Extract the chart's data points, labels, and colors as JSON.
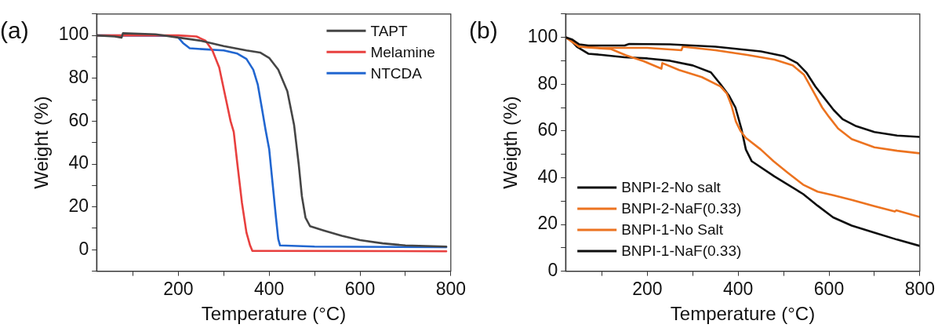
{
  "chart_data": [
    {
      "type": "line",
      "title": "(a)",
      "xlabel": "Temperature (°C)",
      "ylabel": "Weight (%)",
      "xlim": [
        20,
        800
      ],
      "ylim": [
        -10,
        110
      ],
      "xticks": [
        {
          "value": 100,
          "label": null
        },
        200,
        {
          "value": 300,
          "label": null
        },
        400,
        {
          "value": 500,
          "label": null
        },
        600,
        {
          "value": 700,
          "label": null
        },
        800
      ],
      "yticks": [
        {
          "value": -10,
          "label": null
        },
        0,
        {
          "value": 10,
          "label": null
        },
        20,
        {
          "value": 30,
          "label": null
        },
        40,
        {
          "value": 50,
          "label": null
        },
        60,
        {
          "value": 70,
          "label": null
        },
        80,
        {
          "value": 90,
          "label": null
        },
        100,
        {
          "value": 110,
          "label": null
        }
      ],
      "grid": false,
      "legend": "top right",
      "line_style": "solid",
      "marker": "none",
      "series": [
        {
          "name": "TAPT",
          "color": "#454545",
          "x": [
            20,
            60,
            75,
            78,
            150,
            200,
            250,
            300,
            350,
            380,
            400,
            420,
            440,
            455,
            465,
            472,
            480,
            490,
            520,
            560,
            600,
            650,
            700,
            790
          ],
          "values": [
            100,
            99.5,
            99,
            101,
            100.5,
            99,
            97.5,
            95,
            93,
            92,
            89.5,
            84,
            74,
            58,
            40,
            25,
            15,
            11,
            9,
            6.5,
            4.5,
            3,
            2,
            1.5
          ]
        },
        {
          "name": "Melamine",
          "color": "#e8403f",
          "x": [
            20,
            200,
            240,
            260,
            275,
            290,
            305,
            315,
            322,
            330,
            340,
            350,
            358,
            363,
            790
          ],
          "values": [
            100,
            100,
            99.5,
            97.5,
            93,
            85,
            70,
            60,
            55,
            40,
            22,
            8,
            2,
            -0.5,
            -0.7
          ]
        },
        {
          "name": "NTCDA",
          "color": "#2166d0",
          "x": [
            20,
            190,
            200,
            210,
            225,
            260,
            300,
            330,
            350,
            365,
            375,
            384,
            392,
            400,
            408,
            415,
            420,
            424,
            500,
            790
          ],
          "values": [
            100,
            99.8,
            99,
            96.5,
            94,
            93.5,
            93,
            91.5,
            89,
            84,
            77,
            66,
            56,
            47,
            30,
            15,
            5,
            2,
            1.5,
            1.2
          ]
        }
      ]
    },
    {
      "type": "line",
      "title": "(b)",
      "xlabel": "Temperature (°C)",
      "ylabel": "Weigth (%)",
      "xlim": [
        20,
        800
      ],
      "ylim": [
        0,
        110
      ],
      "xticks": [
        {
          "value": 100,
          "label": null
        },
        200,
        {
          "value": 300,
          "label": null
        },
        400,
        {
          "value": 500,
          "label": null
        },
        600,
        {
          "value": 700,
          "label": null
        },
        800
      ],
      "yticks": [
        0,
        {
          "value": 10,
          "label": null
        },
        20,
        {
          "value": 30,
          "label": null
        },
        40,
        {
          "value": 50,
          "label": null
        },
        60,
        {
          "value": 70,
          "label": null
        },
        80,
        {
          "value": 90,
          "label": null
        },
        100,
        {
          "value": 110,
          "label": null
        }
      ],
      "grid": false,
      "legend": "bottom left",
      "line_style": "solid",
      "marker": "none",
      "series": [
        {
          "name": "BNPI-2-No salt",
          "color": "#0d0d0d",
          "x": [
            20,
            35,
            50,
            70,
            150,
            160,
            250,
            350,
            450,
            500,
            530,
            550,
            570,
            590,
            610,
            630,
            660,
            700,
            750,
            800
          ],
          "values": [
            100,
            99,
            97,
            96.5,
            96.5,
            97.2,
            97,
            96,
            94,
            92,
            89,
            85,
            79,
            74,
            69,
            65,
            62,
            59.5,
            58,
            57.4
          ]
        },
        {
          "name": "BNPI-2-NaF(0.33)",
          "color": "#ec7320",
          "x": [
            20,
            35,
            50,
            100,
            200,
            275,
            278,
            350,
            420,
            480,
            520,
            545,
            565,
            585,
            600,
            620,
            650,
            700,
            750,
            800
          ],
          "values": [
            100,
            98.5,
            96,
            95.5,
            95.5,
            94.5,
            96,
            94.5,
            92.5,
            90.5,
            88,
            84,
            77,
            70,
            66,
            61,
            56.5,
            53,
            51.5,
            50.4
          ]
        },
        {
          "name": "BNPI-1-No Salt",
          "color": "#ec7320",
          "x": [
            20,
            35,
            50,
            80,
            120,
            153,
            192,
            231,
            233,
            270,
            320,
            361,
            375,
            385,
            395,
            405,
            417,
            450,
            478,
            510,
            543,
            575,
            609,
            650,
            700,
            745,
            748,
            800
          ],
          "values": [
            100,
            98,
            96,
            95.5,
            95,
            92.3,
            89.8,
            86.6,
            89,
            86,
            83,
            79,
            76,
            71,
            64,
            60,
            57,
            52,
            47,
            42,
            37,
            34,
            32.5,
            30.5,
            27.8,
            25.5,
            26,
            23.2
          ]
        },
        {
          "name": "BNPI-1-NaF(0.33)",
          "color": "#0d0d0d",
          "x": [
            20,
            30,
            45,
            70,
            100,
            150,
            200,
            250,
            300,
            340,
            361,
            380,
            394,
            407,
            417,
            430,
            480,
            543,
            575,
            609,
            650,
            700,
            750,
            800
          ],
          "values": [
            100,
            99,
            96,
            93,
            92.5,
            91.5,
            91,
            90,
            88,
            85,
            80,
            75,
            70,
            61,
            52,
            47,
            40.5,
            33,
            28,
            23,
            19.5,
            16.5,
            13.5,
            10.8
          ]
        }
      ]
    }
  ]
}
